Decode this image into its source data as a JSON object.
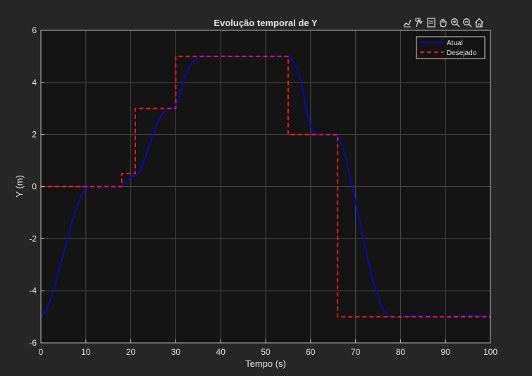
{
  "figure": {
    "background": "#262626",
    "axes_background": "#141414",
    "grid_color": "#4a4a4a",
    "text_color": "#e6e6e6"
  },
  "toolbar": {
    "icons": [
      "brush-icon",
      "data-tips-icon",
      "export-icon",
      "pan-icon",
      "zoom-in-icon",
      "zoom-out-icon",
      "home-icon"
    ]
  },
  "chart_data": {
    "type": "line",
    "title": "Evolução temporal de Y",
    "xlabel": "Tempo (s)",
    "ylabel": "Y (m)",
    "xlim": [
      0,
      100
    ],
    "ylim": [
      -6,
      6
    ],
    "xticks": [
      "0",
      "10",
      "20",
      "30",
      "40",
      "50",
      "60",
      "70",
      "80",
      "90",
      "100"
    ],
    "yticks": [
      "6",
      "4",
      "2",
      "0",
      "-2",
      "-4",
      "-6"
    ],
    "grid": true,
    "legend_position": "top-right",
    "series": [
      {
        "name": "Atual",
        "color": "#0a0ab4",
        "style": "solid",
        "x": [
          0,
          1,
          2,
          3,
          4,
          5,
          6,
          7,
          8,
          9,
          10,
          11,
          12,
          14,
          16,
          18,
          19,
          20,
          21,
          22,
          23,
          24,
          25,
          26,
          27,
          28,
          29,
          30,
          31,
          32,
          33,
          34,
          35,
          36,
          40,
          45,
          50,
          55,
          56,
          57,
          58,
          59,
          60,
          61,
          62,
          64,
          66,
          67,
          68,
          69,
          70,
          71,
          72,
          73,
          74,
          75,
          76,
          77,
          78,
          79,
          80,
          82,
          84,
          86,
          88,
          90,
          92,
          94,
          96,
          98,
          100
        ],
        "y": [
          -5.0,
          -4.8,
          -4.4,
          -3.9,
          -3.2,
          -2.6,
          -2.0,
          -1.3,
          -0.8,
          -0.35,
          -0.05,
          0.0,
          0.0,
          0.0,
          0.0,
          0.0,
          0.2,
          0.35,
          0.45,
          0.55,
          1.0,
          1.5,
          2.0,
          2.5,
          2.8,
          2.95,
          3.0,
          3.1,
          3.6,
          4.2,
          4.6,
          4.85,
          4.95,
          5.0,
          5.0,
          5.0,
          5.0,
          5.0,
          4.85,
          4.5,
          4.0,
          3.0,
          2.3,
          2.05,
          2.0,
          2.0,
          1.95,
          1.6,
          1.0,
          0.2,
          -0.6,
          -1.4,
          -2.2,
          -3.0,
          -3.7,
          -4.2,
          -4.7,
          -4.95,
          -5.0,
          -5.0,
          -5.0,
          -4.97,
          -4.96,
          -4.98,
          -5.0,
          -5.0,
          -4.98,
          -4.97,
          -4.95,
          -4.97,
          -5.0
        ]
      },
      {
        "name": "Desejado",
        "color": "#ff1a1a",
        "style": "dashed",
        "x": [
          0,
          18,
          18,
          19.5,
          19.5,
          21,
          21,
          30,
          30,
          55,
          55,
          66,
          66,
          100
        ],
        "y": [
          0,
          0,
          0.5,
          0.5,
          0.5,
          0.5,
          3,
          3,
          5,
          5,
          2,
          2,
          -5,
          -5
        ]
      }
    ]
  }
}
